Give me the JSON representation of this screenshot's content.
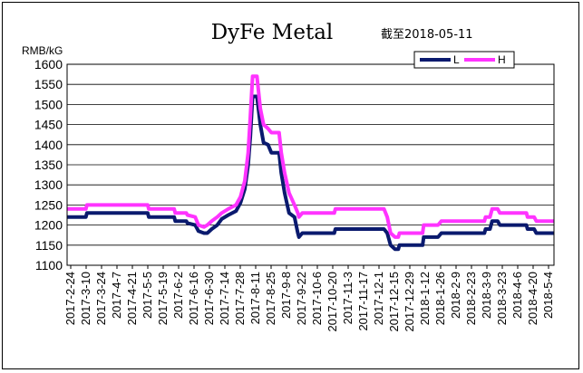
{
  "chart_data": {
    "type": "line",
    "title": "DyFe Metal",
    "subtitle": "截至2018-05-11",
    "ylabel": "RMB/kG",
    "xlabel": "",
    "ylim": [
      1100,
      1600
    ],
    "yticks": [
      1100,
      1150,
      1200,
      1250,
      1300,
      1350,
      1400,
      1450,
      1500,
      1550,
      1600
    ],
    "grid": true,
    "legend_position": "top-right",
    "x_tick_labels": [
      "2017-2-24",
      "2017-3-10",
      "2017-3-24",
      "2017-4-7",
      "2017-4-21",
      "2017-5-5",
      "2017-5-19",
      "2017-6-2",
      "2017-6-16",
      "2017-6-30",
      "2017-7-14",
      "2017-7-28",
      "2017-8-11",
      "2017-8-25",
      "2017-9-8",
      "2017-9-22",
      "2017-10-6",
      "2017-10-20",
      "2017-11-3",
      "2017-11-17",
      "2017-12-1",
      "2017-12-15",
      "2017-12-29",
      "2018-1-12",
      "2018-1-26",
      "2018-2-9",
      "2018-2-23",
      "2018-3-9",
      "2018-3-23",
      "2018-4-6",
      "2018-4-20",
      "2018-5-4"
    ],
    "x_start": "2017-02-24",
    "x_end": "2018-05-11",
    "series": [
      {
        "name": "L",
        "color": "#0a1a6e",
        "points": [
          [
            "2017-02-24",
            1220
          ],
          [
            "2017-03-13",
            1220
          ],
          [
            "2017-03-14",
            1230
          ],
          [
            "2017-05-08",
            1230
          ],
          [
            "2017-05-09",
            1220
          ],
          [
            "2017-06-01",
            1220
          ],
          [
            "2017-06-02",
            1210
          ],
          [
            "2017-06-12",
            1210
          ],
          [
            "2017-06-13",
            1205
          ],
          [
            "2017-06-20",
            1200
          ],
          [
            "2017-06-23",
            1185
          ],
          [
            "2017-06-28",
            1180
          ],
          [
            "2017-07-01",
            1180
          ],
          [
            "2017-07-05",
            1190
          ],
          [
            "2017-07-10",
            1200
          ],
          [
            "2017-07-14",
            1215
          ],
          [
            "2017-07-20",
            1225
          ],
          [
            "2017-07-27",
            1235
          ],
          [
            "2017-07-31",
            1255
          ],
          [
            "2017-08-04",
            1290
          ],
          [
            "2017-08-07",
            1350
          ],
          [
            "2017-08-09",
            1420
          ],
          [
            "2017-08-11",
            1520
          ],
          [
            "2017-08-15",
            1520
          ],
          [
            "2017-08-18",
            1450
          ],
          [
            "2017-08-21",
            1405
          ],
          [
            "2017-08-25",
            1400
          ],
          [
            "2017-08-28",
            1380
          ],
          [
            "2017-09-04",
            1380
          ],
          [
            "2017-09-06",
            1330
          ],
          [
            "2017-09-09",
            1280
          ],
          [
            "2017-09-13",
            1230
          ],
          [
            "2017-09-18",
            1220
          ],
          [
            "2017-09-21",
            1180
          ],
          [
            "2017-09-22",
            1170
          ],
          [
            "2017-09-25",
            1180
          ],
          [
            "2017-10-24",
            1180
          ],
          [
            "2017-10-25",
            1190
          ],
          [
            "2017-12-08",
            1190
          ],
          [
            "2017-12-11",
            1180
          ],
          [
            "2017-12-14",
            1150
          ],
          [
            "2017-12-18",
            1140
          ],
          [
            "2017-12-21",
            1140
          ],
          [
            "2017-12-22",
            1150
          ],
          [
            "2018-01-12",
            1150
          ],
          [
            "2018-01-13",
            1170
          ],
          [
            "2018-01-26",
            1170
          ],
          [
            "2018-01-29",
            1180
          ],
          [
            "2018-03-09",
            1180
          ],
          [
            "2018-03-10",
            1190
          ],
          [
            "2018-03-14",
            1190
          ],
          [
            "2018-03-16",
            1210
          ],
          [
            "2018-03-21",
            1210
          ],
          [
            "2018-03-23",
            1200
          ],
          [
            "2018-04-16",
            1200
          ],
          [
            "2018-04-17",
            1190
          ],
          [
            "2018-04-23",
            1190
          ],
          [
            "2018-04-25",
            1180
          ],
          [
            "2018-05-11",
            1180
          ]
        ]
      },
      {
        "name": "H",
        "color": "#ff33ff",
        "points": [
          [
            "2017-02-24",
            1240
          ],
          [
            "2017-03-13",
            1240
          ],
          [
            "2017-03-14",
            1250
          ],
          [
            "2017-05-08",
            1250
          ],
          [
            "2017-05-09",
            1240
          ],
          [
            "2017-06-01",
            1240
          ],
          [
            "2017-06-02",
            1230
          ],
          [
            "2017-06-12",
            1230
          ],
          [
            "2017-06-13",
            1225
          ],
          [
            "2017-06-20",
            1220
          ],
          [
            "2017-06-23",
            1200
          ],
          [
            "2017-06-28",
            1195
          ],
          [
            "2017-07-01",
            1200
          ],
          [
            "2017-07-05",
            1210
          ],
          [
            "2017-07-10",
            1220
          ],
          [
            "2017-07-14",
            1230
          ],
          [
            "2017-07-20",
            1240
          ],
          [
            "2017-07-27",
            1250
          ],
          [
            "2017-07-31",
            1270
          ],
          [
            "2017-08-04",
            1310
          ],
          [
            "2017-08-07",
            1380
          ],
          [
            "2017-08-09",
            1470
          ],
          [
            "2017-08-11",
            1570
          ],
          [
            "2017-08-15",
            1570
          ],
          [
            "2017-08-18",
            1490
          ],
          [
            "2017-08-21",
            1450
          ],
          [
            "2017-08-25",
            1440
          ],
          [
            "2017-08-28",
            1430
          ],
          [
            "2017-09-04",
            1430
          ],
          [
            "2017-09-06",
            1380
          ],
          [
            "2017-09-09",
            1330
          ],
          [
            "2017-09-13",
            1280
          ],
          [
            "2017-09-18",
            1250
          ],
          [
            "2017-09-21",
            1230
          ],
          [
            "2017-09-22",
            1220
          ],
          [
            "2017-09-25",
            1230
          ],
          [
            "2017-10-24",
            1230
          ],
          [
            "2017-10-25",
            1240
          ],
          [
            "2017-12-08",
            1240
          ],
          [
            "2017-12-11",
            1220
          ],
          [
            "2017-12-14",
            1180
          ],
          [
            "2017-12-18",
            1170
          ],
          [
            "2017-12-21",
            1170
          ],
          [
            "2017-12-22",
            1180
          ],
          [
            "2018-01-12",
            1180
          ],
          [
            "2018-01-13",
            1200
          ],
          [
            "2018-01-26",
            1200
          ],
          [
            "2018-01-29",
            1210
          ],
          [
            "2018-03-09",
            1210
          ],
          [
            "2018-03-10",
            1220
          ],
          [
            "2018-03-14",
            1220
          ],
          [
            "2018-03-16",
            1240
          ],
          [
            "2018-03-21",
            1240
          ],
          [
            "2018-03-23",
            1230
          ],
          [
            "2018-04-16",
            1230
          ],
          [
            "2018-04-17",
            1220
          ],
          [
            "2018-04-23",
            1220
          ],
          [
            "2018-04-25",
            1210
          ],
          [
            "2018-05-11",
            1210
          ]
        ]
      }
    ]
  }
}
